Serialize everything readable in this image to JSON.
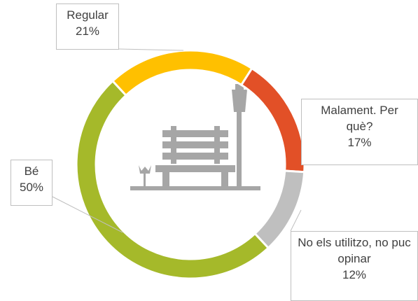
{
  "chart_data": {
    "type": "donut",
    "categories": [
      "Regular",
      "Malament. Per què?",
      "No els utilitzo, no puc opinar",
      "Bé"
    ],
    "values": [
      21,
      17,
      12,
      50
    ],
    "value_labels": [
      "21%",
      "17%",
      "12%",
      "50%"
    ],
    "colors": [
      "#ffc000",
      "#e25027",
      "#bfbfbf",
      "#a5b92a"
    ]
  }
}
